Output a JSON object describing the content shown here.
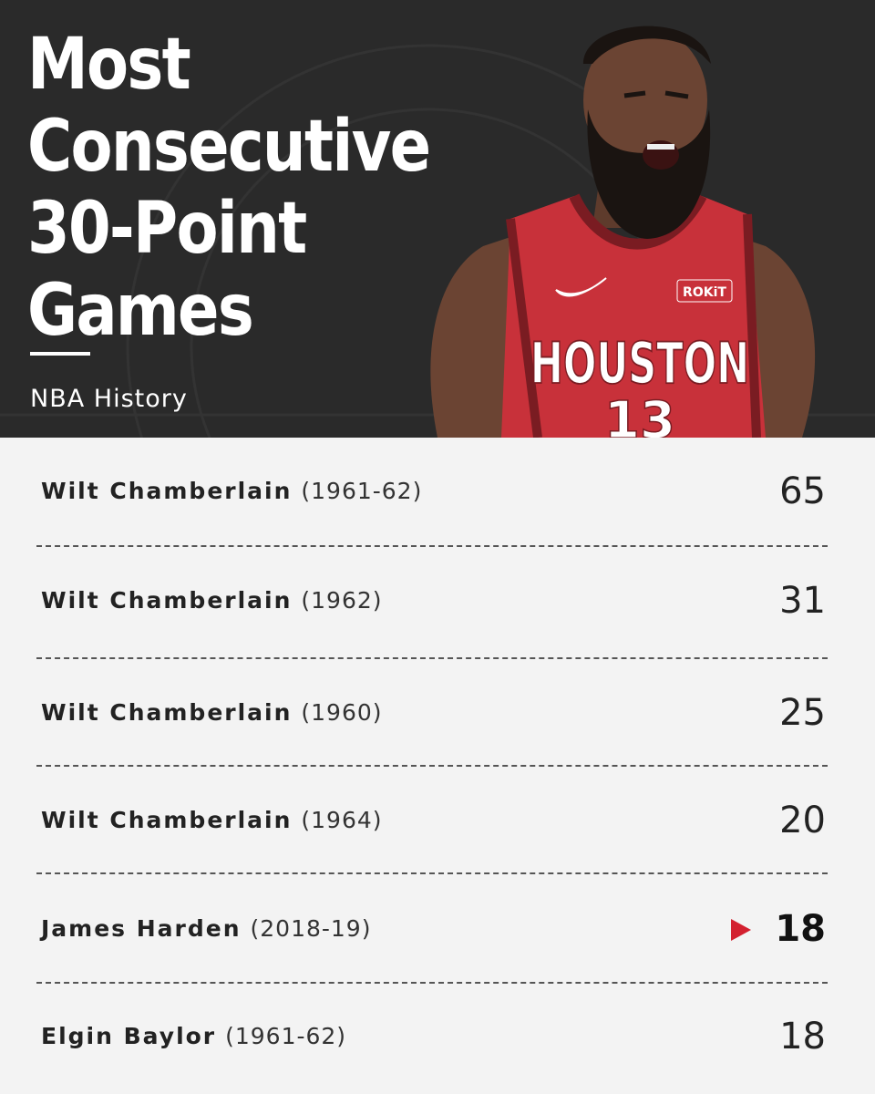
{
  "header": {
    "title": "Most\nConsecutive\n30-Point\nGames",
    "subtitle": "NBA History",
    "jersey": {
      "patch": "ROKiT",
      "team": "HOUSTON",
      "number": "13"
    }
  },
  "records": [
    {
      "player": "Wilt Chamberlain",
      "years": "(1961-62)",
      "games": "65",
      "highlight": false
    },
    {
      "player": "Wilt Chamberlain",
      "years": "(1962)",
      "games": "31",
      "highlight": false
    },
    {
      "player": "Wilt Chamberlain",
      "years": "(1960)",
      "games": "25",
      "highlight": false
    },
    {
      "player": "Wilt Chamberlain",
      "years": "(1964)",
      "games": "20",
      "highlight": false
    },
    {
      "player": "James Harden",
      "years": "(2018-19)",
      "games": "18",
      "highlight": true
    },
    {
      "player": "Elgin Baylor",
      "years": "(1961-62)",
      "games": "18",
      "highlight": false
    }
  ],
  "colors": {
    "header_bg": "#2a2a2a",
    "list_bg": "#f3f3f3",
    "accent": "#d3202f",
    "jersey": "#c8313a"
  },
  "icons": {
    "marker": "red-triangle-right-icon",
    "swoosh": "swoosh-logo-icon"
  }
}
